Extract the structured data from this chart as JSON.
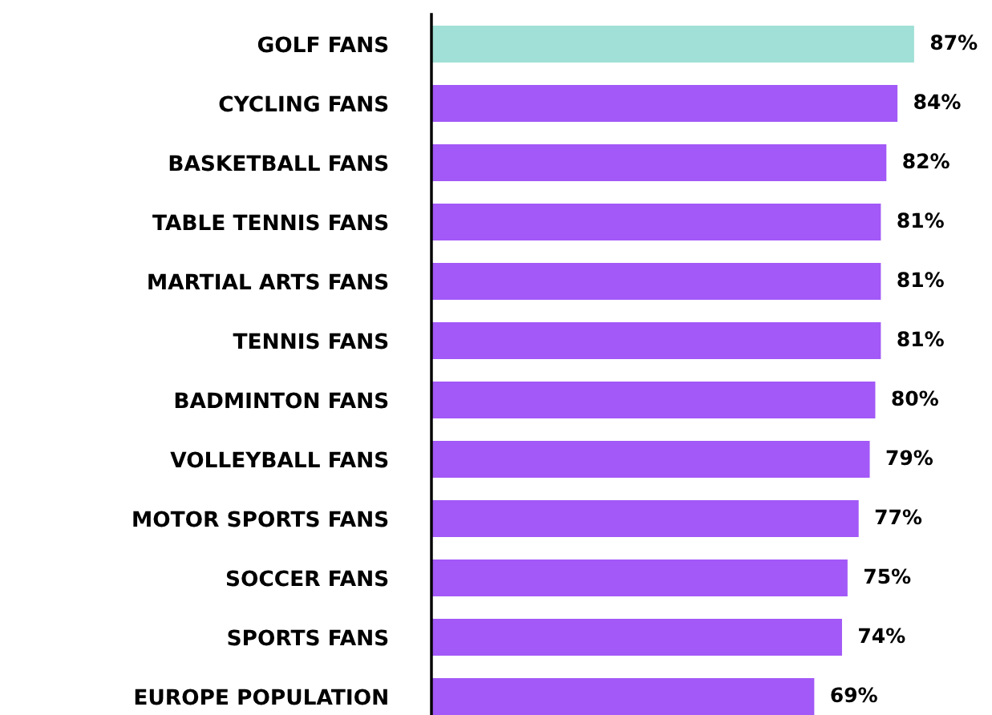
{
  "chart_data": {
    "type": "bar",
    "orientation": "horizontal",
    "categories": [
      "GOLF FANS",
      "CYCLING FANS",
      "BASKETBALL FANS",
      "TABLE TENNIS FANS",
      "MARTIAL ARTS FANS",
      "TENNIS FANS",
      "BADMINTON FANS",
      "VOLLEYBALL FANS",
      "MOTOR SPORTS FANS",
      "SOCCER FANS",
      "SPORTS FANS",
      "EUROPE POPULATION"
    ],
    "values": [
      87,
      84,
      82,
      81,
      81,
      81,
      80,
      79,
      77,
      75,
      74,
      69
    ],
    "colors": [
      "#a0e0d6",
      "#a259f7",
      "#a259f7",
      "#a259f7",
      "#a259f7",
      "#a259f7",
      "#a259f7",
      "#a259f7",
      "#a259f7",
      "#a259f7",
      "#a259f7",
      "#a259f7"
    ],
    "value_labels": [
      "87%",
      "84%",
      "82%",
      "81%",
      "81%",
      "81%",
      "80%",
      "79%",
      "77%",
      "75%",
      "74%",
      "69%"
    ],
    "tick_labels": "y",
    "grid": false,
    "legend": false
  }
}
